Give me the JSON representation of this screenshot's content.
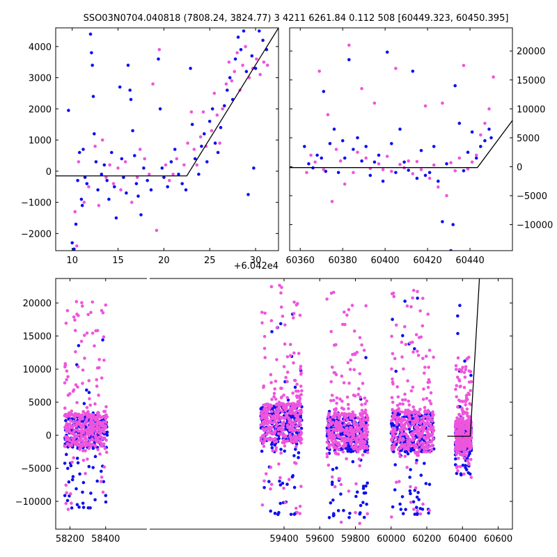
{
  "figure": {
    "title": "SSO03N0704.040818 (7808.24, 3824.77)    3 4211 6261.84 0.112 508 [60449.323, 60450.395]"
  },
  "colors": {
    "series_a": "#1010ee",
    "series_b": "#ee55dd",
    "model": "#000000"
  },
  "chart_data": [
    {
      "type": "scatter",
      "id": "top-left",
      "xlim": [
        8.2,
        32.5
      ],
      "ylim": [
        -2550,
        4600
      ],
      "x_offset_label": "+6.042e4",
      "xticks": [
        10,
        15,
        20,
        25,
        30
      ],
      "yticks": [
        -2000,
        -1000,
        0,
        1000,
        2000,
        3000,
        4000
      ],
      "model_line": {
        "x": [
          8.2,
          22.5,
          32.5
        ],
        "y": [
          -150,
          -150,
          4600
        ]
      },
      "series": [
        {
          "color_key": "series_a",
          "points": [
            [
              9.6,
              1950
            ],
            [
              10,
              -2300
            ],
            [
              10.2,
              -2500
            ],
            [
              10.4,
              -1700
            ],
            [
              10.6,
              -300
            ],
            [
              10.8,
              600
            ],
            [
              11,
              -900
            ],
            [
              11.1,
              -1100
            ],
            [
              11.2,
              700
            ],
            [
              11.4,
              -200
            ],
            [
              11.6,
              -400
            ],
            [
              12,
              4400
            ],
            [
              12.1,
              3800
            ],
            [
              12.2,
              3400
            ],
            [
              12.3,
              2400
            ],
            [
              12.4,
              1200
            ],
            [
              12.6,
              300
            ],
            [
              12.8,
              -600
            ],
            [
              13.2,
              -100
            ],
            [
              13.5,
              200
            ],
            [
              13.8,
              -300
            ],
            [
              14,
              -900
            ],
            [
              14.3,
              600
            ],
            [
              14.6,
              -500
            ],
            [
              14.8,
              -1500
            ],
            [
              15.2,
              2700
            ],
            [
              15.4,
              400
            ],
            [
              15.6,
              -200
            ],
            [
              15.9,
              -700
            ],
            [
              16.1,
              3400
            ],
            [
              16.3,
              2600
            ],
            [
              16.4,
              2300
            ],
            [
              16.6,
              1300
            ],
            [
              16.8,
              500
            ],
            [
              17,
              -400
            ],
            [
              17.2,
              -800
            ],
            [
              17.5,
              -1400
            ],
            [
              17.8,
              100
            ],
            [
              18.2,
              -300
            ],
            [
              18.6,
              -600
            ],
            [
              19.4,
              3600
            ],
            [
              19.6,
              2000
            ],
            [
              19.8,
              100
            ],
            [
              20,
              -200
            ],
            [
              20.4,
              -500
            ],
            [
              20.8,
              300
            ],
            [
              21.2,
              700
            ],
            [
              21.6,
              -100
            ],
            [
              22,
              -400
            ],
            [
              22.4,
              -600
            ],
            [
              22.9,
              3300
            ],
            [
              23.1,
              1500
            ],
            [
              23.4,
              400
            ],
            [
              23.8,
              -100
            ],
            [
              24.1,
              800
            ],
            [
              24.4,
              1200
            ],
            [
              24.7,
              300
            ],
            [
              25,
              1600
            ],
            [
              25.3,
              2000
            ],
            [
              25.6,
              900
            ],
            [
              25.9,
              600
            ],
            [
              26.2,
              1400
            ],
            [
              26.6,
              2100
            ],
            [
              26.9,
              2600
            ],
            [
              27.2,
              3000
            ],
            [
              27.5,
              2300
            ],
            [
              27.8,
              3600
            ],
            [
              28.1,
              4300
            ],
            [
              28.4,
              3900
            ],
            [
              28.7,
              4500
            ],
            [
              29,
              3200
            ],
            [
              29.2,
              -750
            ],
            [
              29.6,
              3700
            ],
            [
              30,
              3300
            ],
            [
              30.4,
              4500
            ],
            [
              30.8,
              4200
            ],
            [
              31.2,
              3900
            ],
            [
              29.8,
              100
            ]
          ]
        },
        {
          "color_key": "series_b",
          "points": [
            [
              10.3,
              -1300
            ],
            [
              10.5,
              -2400
            ],
            [
              10.7,
              300
            ],
            [
              11.3,
              -1000
            ],
            [
              11.8,
              -500
            ],
            [
              12.5,
              800
            ],
            [
              12.9,
              -1100
            ],
            [
              13.3,
              1000
            ],
            [
              13.7,
              -200
            ],
            [
              14.1,
              200
            ],
            [
              14.5,
              -400
            ],
            [
              15,
              100
            ],
            [
              15.3,
              -600
            ],
            [
              15.8,
              300
            ],
            [
              16.5,
              -1000
            ],
            [
              17.1,
              -200
            ],
            [
              17.4,
              700
            ],
            [
              17.9,
              400
            ],
            [
              18.4,
              -100
            ],
            [
              18.8,
              2800
            ],
            [
              19.2,
              -1900
            ],
            [
              19.5,
              3900
            ],
            [
              20.2,
              200
            ],
            [
              20.6,
              -300
            ],
            [
              21,
              -100
            ],
            [
              21.4,
              400
            ],
            [
              22.2,
              200
            ],
            [
              22.6,
              900
            ],
            [
              23,
              1900
            ],
            [
              23.3,
              700
            ],
            [
              23.6,
              200
            ],
            [
              24,
              1100
            ],
            [
              24.3,
              1900
            ],
            [
              24.6,
              800
            ],
            [
              25.2,
              1300
            ],
            [
              25.5,
              2500
            ],
            [
              25.8,
              1800
            ],
            [
              26.1,
              900
            ],
            [
              26.4,
              2000
            ],
            [
              26.8,
              2800
            ],
            [
              27.1,
              3500
            ],
            [
              27.4,
              2900
            ],
            [
              27.7,
              3200
            ],
            [
              28,
              3800
            ],
            [
              28.3,
              2600
            ],
            [
              28.6,
              3400
            ],
            [
              28.9,
              4000
            ],
            [
              29.3,
              3000
            ],
            [
              29.7,
              3300
            ],
            [
              30.1,
              3600
            ],
            [
              30.5,
              3100
            ],
            [
              30.9,
              3500
            ],
            [
              31.3,
              3400
            ]
          ]
        }
      ]
    },
    {
      "type": "scatter",
      "id": "top-right",
      "xlim": [
        60355,
        60460
      ],
      "ylim": [
        -14500,
        24000
      ],
      "xticks": [
        60360,
        60380,
        60400,
        60420,
        60440
      ],
      "yticks": [
        -10000,
        -5000,
        0,
        5000,
        10000,
        15000,
        20000
      ],
      "model_line": {
        "x": [
          60355,
          60443.5,
          60460
        ],
        "y": [
          -150,
          -150,
          8000
        ]
      },
      "series": [
        {
          "color_key": "series_a",
          "points": [
            [
              60362,
              3500
            ],
            [
              60364,
              500
            ],
            [
              60366,
              -200
            ],
            [
              60368,
              2000
            ],
            [
              60370,
              1500
            ],
            [
              60371,
              13000
            ],
            [
              60372,
              -800
            ],
            [
              60374,
              4000
            ],
            [
              60376,
              6500
            ],
            [
              60378,
              -1000
            ],
            [
              60380,
              4500
            ],
            [
              60381,
              1500
            ],
            [
              60383,
              18500
            ],
            [
              60385,
              3000
            ],
            [
              60387,
              5000
            ],
            [
              60389,
              1000
            ],
            [
              60391,
              3500
            ],
            [
              60393,
              -1500
            ],
            [
              60395,
              800
            ],
            [
              60397,
              2000
            ],
            [
              60399,
              -2500
            ],
            [
              60401,
              19800
            ],
            [
              60403,
              4000
            ],
            [
              60405,
              -1000
            ],
            [
              60407,
              6500
            ],
            [
              60409,
              800
            ],
            [
              60411,
              -600
            ],
            [
              60413,
              16500
            ],
            [
              60415,
              -2000
            ],
            [
              60417,
              2800
            ],
            [
              60419,
              -1500
            ],
            [
              60421,
              -1000
            ],
            [
              60423,
              3500
            ],
            [
              60425,
              -2500
            ],
            [
              60427,
              -9500
            ],
            [
              60429,
              500
            ],
            [
              60431,
              -14500
            ],
            [
              60432,
              -10000
            ],
            [
              60433,
              14000
            ],
            [
              60435,
              7500
            ],
            [
              60437,
              -700
            ],
            [
              60439,
              2500
            ],
            [
              60441,
              6000
            ],
            [
              60443,
              1500
            ],
            [
              60445,
              3500
            ],
            [
              60447,
              4500
            ],
            [
              60449,
              6500
            ],
            [
              60450,
              5000
            ]
          ]
        },
        {
          "color_key": "series_b",
          "points": [
            [
              60363,
              -1000
            ],
            [
              60365,
              2000
            ],
            [
              60367,
              800
            ],
            [
              60369,
              16500
            ],
            [
              60371,
              -500
            ],
            [
              60373,
              9000
            ],
            [
              60375,
              -6000
            ],
            [
              60377,
              3000
            ],
            [
              60379,
              1000
            ],
            [
              60381,
              -3000
            ],
            [
              60383,
              21000
            ],
            [
              60385,
              -1000
            ],
            [
              60387,
              2500
            ],
            [
              60389,
              13500
            ],
            [
              60391,
              1500
            ],
            [
              60393,
              -300
            ],
            [
              60395,
              11000
            ],
            [
              60397,
              500
            ],
            [
              60399,
              -500
            ],
            [
              60401,
              1800
            ],
            [
              60403,
              -800
            ],
            [
              60405,
              17000
            ],
            [
              60407,
              400
            ],
            [
              60409,
              -200
            ],
            [
              60411,
              1000
            ],
            [
              60413,
              -1200
            ],
            [
              60415,
              900
            ],
            [
              60417,
              -500
            ],
            [
              60419,
              10500
            ],
            [
              60421,
              -2000
            ],
            [
              60423,
              300
            ],
            [
              60425,
              -3500
            ],
            [
              60427,
              11000
            ],
            [
              60429,
              -5000
            ],
            [
              60431,
              700
            ],
            [
              60433,
              -700
            ],
            [
              60435,
              1500
            ],
            [
              60437,
              17500
            ],
            [
              60439,
              -400
            ],
            [
              60441,
              800
            ],
            [
              60443,
              2000
            ],
            [
              60445,
              5500
            ],
            [
              60447,
              7500
            ],
            [
              60449,
              10000
            ],
            [
              60451,
              15500
            ]
          ]
        }
      ]
    },
    {
      "type": "scatter",
      "id": "bottom",
      "xlim": [
        58120,
        60680
      ],
      "ylim": [
        -14200,
        23700
      ],
      "xticks": [
        58200,
        58400,
        59400,
        59600,
        59800,
        60000,
        60200,
        60400,
        60600
      ],
      "yticks": [
        -10000,
        -5000,
        0,
        5000,
        10000,
        15000,
        20000
      ],
      "model_line": {
        "x": [
          60315,
          60443.5,
          60495
        ],
        "y": [
          -150,
          -150,
          23700
        ]
      },
      "clusters": [
        {
          "range": [
            58170,
            58410
          ],
          "core": [
            -2000,
            3000
          ],
          "b_extent": [
            -11500,
            21500
          ],
          "a_extent": [
            -11000,
            14500
          ]
        },
        {
          "range": [
            59270,
            59500
          ],
          "core": [
            -1500,
            4500
          ],
          "b_extent": [
            -12500,
            23500
          ],
          "a_extent": [
            -12000,
            22000
          ]
        },
        {
          "range": [
            59640,
            59870
          ],
          "core": [
            -2500,
            3000
          ],
          "b_extent": [
            -13500,
            22500
          ],
          "a_extent": [
            -12500,
            23000
          ]
        },
        {
          "range": [
            60000,
            60240
          ],
          "core": [
            -2500,
            3500
          ],
          "b_extent": [
            -13500,
            22000
          ],
          "a_extent": [
            -12000,
            22500
          ]
        },
        {
          "range": [
            60360,
            60450
          ],
          "core": [
            -2500,
            2000
          ],
          "b_extent": [
            -6500,
            12000
          ],
          "a_extent": [
            -6000,
            21000
          ]
        }
      ]
    }
  ]
}
